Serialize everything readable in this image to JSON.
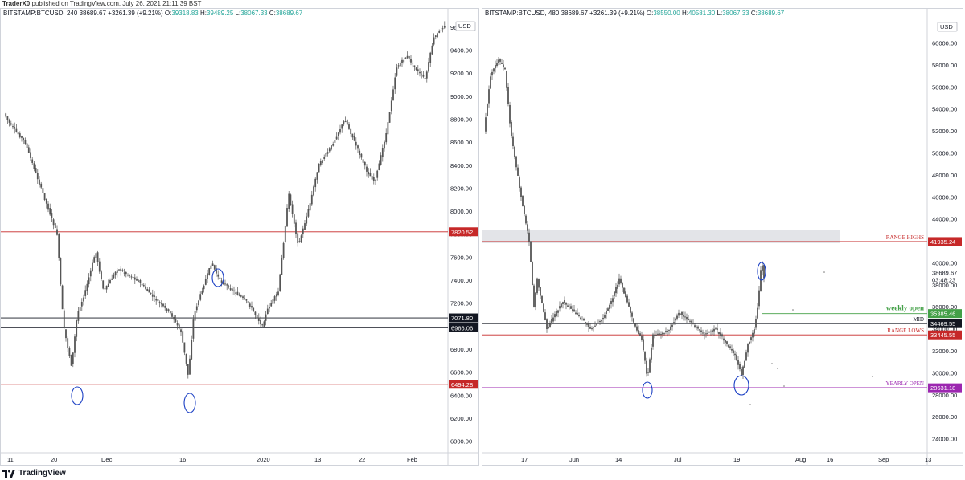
{
  "published_line": {
    "author": "TraderX0",
    "text": "published on TradingView.com, July 26, 2021 21:11:39 BST"
  },
  "brand": "TradingView",
  "left_chart": {
    "symbol": "BITSTAMP:BTCUSD, 240",
    "last": "38689.67",
    "change": "+3261.39 (+9.21%)",
    "open": "39318.83",
    "high": "39489.25",
    "low": "38067.33",
    "close": "38689.67",
    "currency": "USD",
    "price_ticks": [
      "9600.00",
      "9400.00",
      "9200.00",
      "9000.00",
      "8800.00",
      "8600.00",
      "8400.00",
      "8200.00",
      "8000.00",
      "7800.00",
      "7600.00",
      "7400.00",
      "7200.00",
      "7000.00",
      "6800.00",
      "6600.00",
      "6400.00",
      "6200.00",
      "6000.00"
    ],
    "time_ticks": [
      "11",
      "20",
      "Dec",
      "16",
      "2020",
      "13",
      "22",
      "Feb"
    ],
    "level_tags": [
      {
        "label": "7820.52",
        "color": "#c62828"
      },
      {
        "label": "7071.80",
        "color": "#131722"
      },
      {
        "label": "6986.06",
        "color": "#131722"
      },
      {
        "label": "6494.28",
        "color": "#c62828"
      }
    ]
  },
  "right_chart": {
    "symbol": "BITSTAMP:BTCUSD, 480",
    "last": "38689.67",
    "change": "+3261.39 (+9.21%)",
    "open": "38550.00",
    "high": "40581.30",
    "low": "38067.33",
    "close": "38689.67",
    "currency": "USD",
    "price_ticks": [
      "60000.00",
      "58000.00",
      "56000.00",
      "54000.00",
      "52000.00",
      "50000.00",
      "48000.00",
      "46000.00",
      "44000.00",
      "42000.00",
      "40000.00",
      "38000.00",
      "36000.00",
      "34000.00",
      "32000.00",
      "30000.00",
      "28000.00",
      "26000.00",
      "24000.00"
    ],
    "time_ticks": [
      "17",
      "Jun",
      "14",
      "Jul",
      "19",
      "Aug",
      "16",
      "Sep",
      "13"
    ],
    "last_price": "38689.67",
    "countdown": "03:48:23",
    "level_tags": [
      {
        "label": "41935.24",
        "color": "#c62828",
        "name": "RANGE HIGHS"
      },
      {
        "label": "35385.46",
        "color": "#43a047",
        "name": "weekly open"
      },
      {
        "label": "34469.55",
        "color": "#131722",
        "name": "MID"
      },
      {
        "label": "33445.55",
        "color": "#c62828",
        "name": "RANGE LOWS"
      },
      {
        "label": "28631.18",
        "color": "#9c27b0",
        "name": "YEARLY OPEN"
      }
    ]
  },
  "colors": {
    "candle": "#555555",
    "support": "#c62828",
    "mid": "#131722",
    "weekly": "#43a047",
    "yearly": "#9c27b0",
    "annotation": "#1a3fc4",
    "zone": "#e3e4e8"
  }
}
